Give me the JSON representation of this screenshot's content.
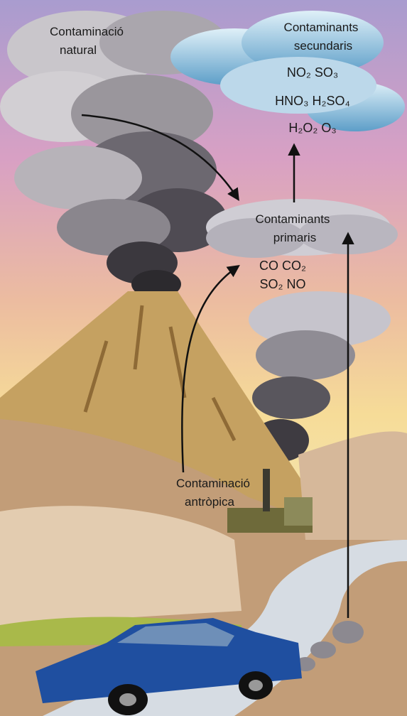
{
  "natural_source": {
    "lines": [
      "Contaminació",
      "natural"
    ]
  },
  "secondary": {
    "lines": [
      "Contaminants",
      "secundaris"
    ],
    "compounds": [
      "NO₂  SO₃",
      "HNO₃  H₂SO₄",
      "H₂O₂  O₃"
    ]
  },
  "primary": {
    "lines": [
      "Contaminants",
      "primaris"
    ],
    "compounds": [
      "CO  CO₂",
      "SO₂  NO"
    ]
  },
  "anthropic_source": {
    "lines": [
      "Contaminació",
      "antròpica"
    ]
  }
}
